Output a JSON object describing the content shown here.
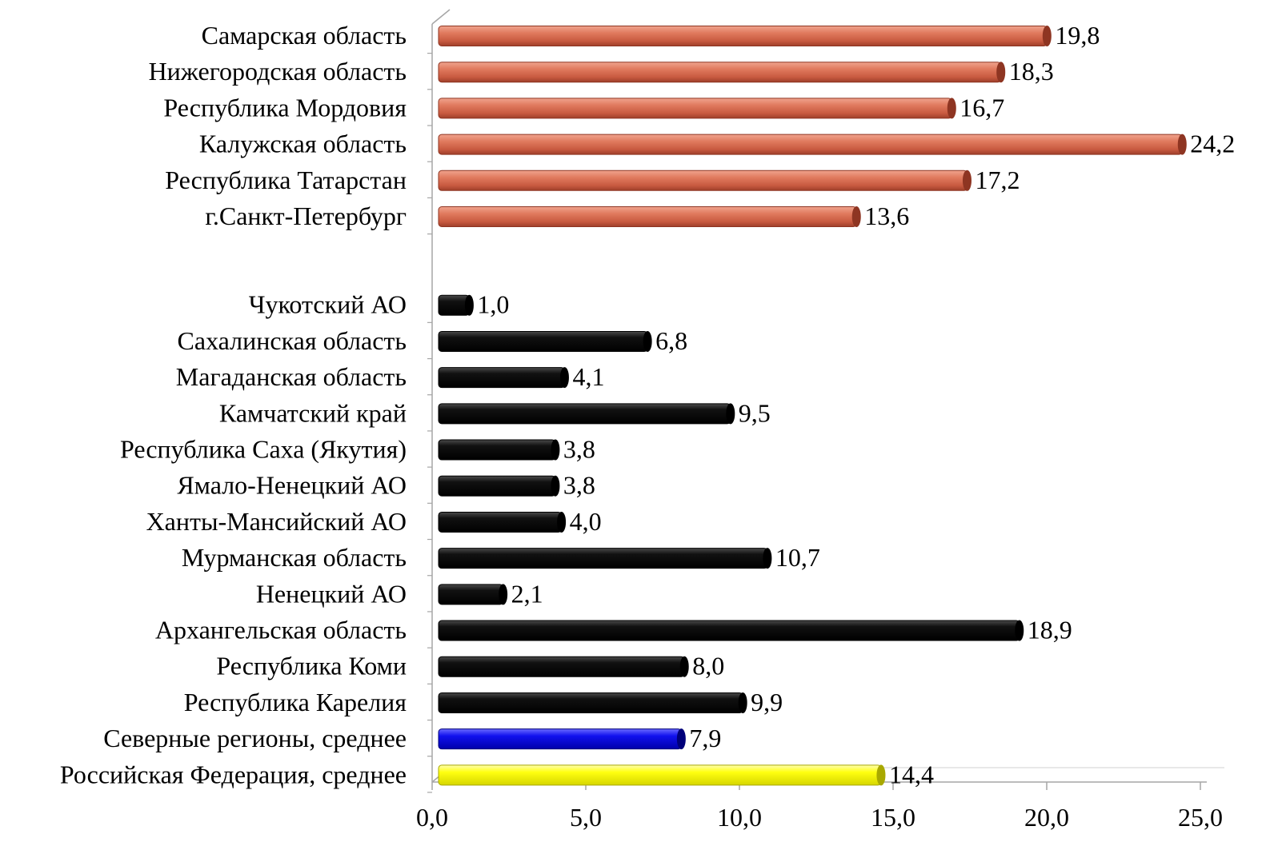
{
  "chart_data": {
    "type": "bar",
    "orientation": "horizontal",
    "title": "",
    "xlabel": "",
    "ylabel": "",
    "xlim": [
      0,
      25
    ],
    "x_ticks": [
      "0,0",
      "5,0",
      "10,0",
      "15,0",
      "20,0",
      "25,0"
    ],
    "grid": false,
    "legend": "none",
    "groups": [
      {
        "color": "#d8654a",
        "categories": [
          "Самарская область",
          "Нижегородская область",
          "Республика Мордовия",
          "Калужская область",
          "Республика Татарстан",
          "г.Санкт-Петербург"
        ],
        "values": [
          19.8,
          18.3,
          16.7,
          24.2,
          17.2,
          13.6
        ],
        "value_labels": [
          "19,8",
          "18,3",
          "16,7",
          "24,2",
          "17,2",
          "13,6"
        ]
      },
      {
        "color": "#000000",
        "categories": [
          "Чукотский АО",
          "Сахалинская область",
          "Магаданская область",
          "Камчатский край",
          "Республика Саха (Якутия)",
          "Ямало-Ненецкий АО",
          "Ханты-Мансийский АО",
          "Мурманская область",
          "Ненецкий АО",
          "Архангельская область",
          "Республика Коми",
          "Республика Карелия"
        ],
        "values": [
          1.0,
          6.8,
          4.1,
          9.5,
          3.8,
          3.8,
          4.0,
          10.7,
          2.1,
          18.9,
          8.0,
          9.9
        ],
        "value_labels": [
          "1,0",
          "6,8",
          "4,1",
          "9,5",
          "3,8",
          "3,8",
          "4,0",
          "10,7",
          "2,1",
          "18,9",
          "8,0",
          "9,9"
        ]
      },
      {
        "color": "#0000ee",
        "categories": [
          "Северные регионы, среднее"
        ],
        "values": [
          7.9
        ],
        "value_labels": [
          "7,9"
        ]
      },
      {
        "color": "#ffff00",
        "categories": [
          "Российская Федерация, среднее"
        ],
        "values": [
          14.4
        ],
        "value_labels": [
          "14,4"
        ]
      }
    ]
  }
}
